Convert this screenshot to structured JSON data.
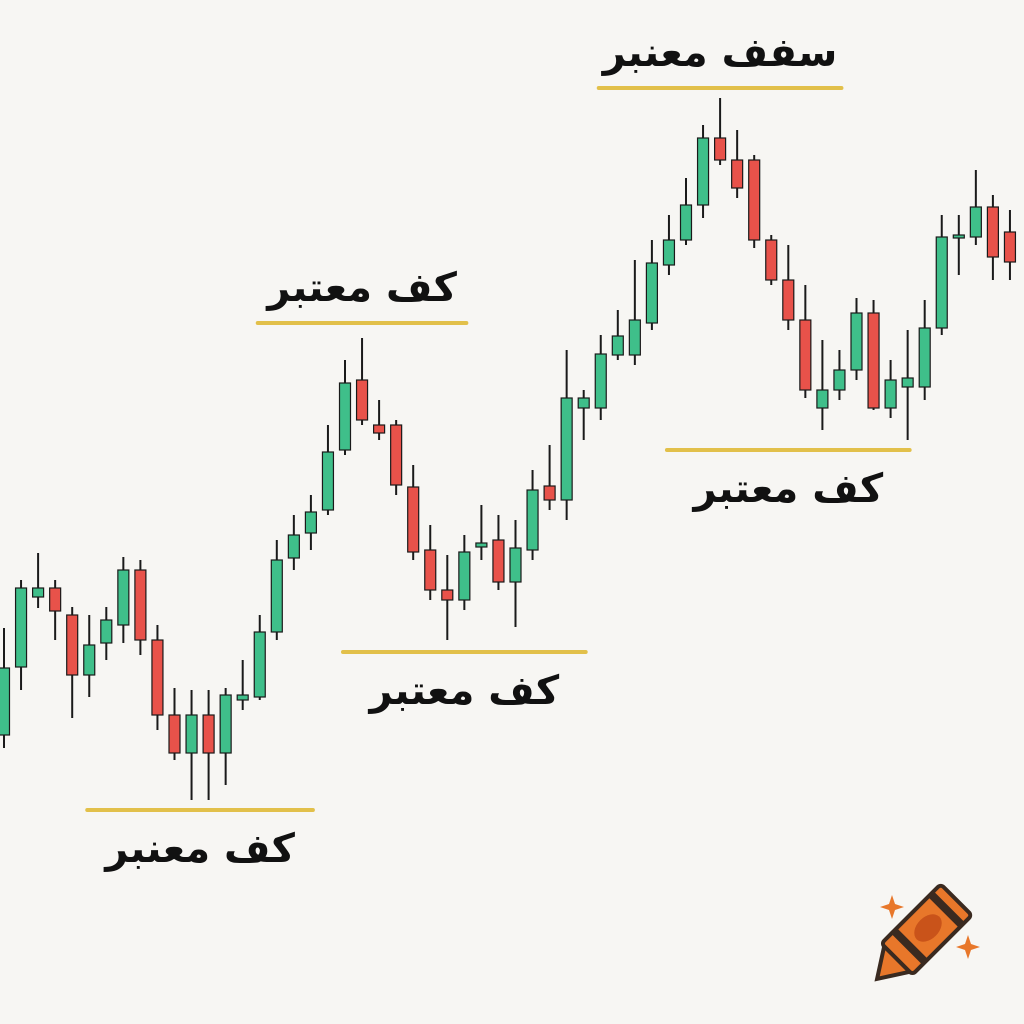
{
  "chart_data": {
    "type": "candlestick",
    "title": "",
    "xlabel": "",
    "ylabel": "",
    "grid": false,
    "colors": {
      "up": "#3fbf8a",
      "down": "#e8524a",
      "outline": "#1a1a1a",
      "level": "#e2c04a",
      "background": "#f7f6f3"
    },
    "ohlc": [
      [
        26.5,
        37.2,
        25.2,
        33.2
      ],
      [
        33.3,
        42.0,
        31.0,
        41.2
      ],
      [
        40.3,
        44.7,
        39.2,
        41.2
      ],
      [
        41.2,
        42.0,
        36.0,
        38.9
      ],
      [
        38.5,
        39.3,
        28.2,
        32.5
      ],
      [
        32.5,
        38.5,
        30.3,
        35.5
      ],
      [
        35.7,
        39.3,
        34.0,
        38.0
      ],
      [
        37.5,
        44.3,
        35.7,
        43.0
      ],
      [
        43.0,
        44.0,
        34.5,
        36.0
      ],
      [
        36.0,
        37.5,
        27.0,
        28.5
      ],
      [
        28.5,
        31.2,
        24.0,
        24.7
      ],
      [
        24.7,
        31.0,
        20.0,
        28.5
      ],
      [
        28.5,
        31.0,
        20.0,
        24.7
      ],
      [
        24.7,
        31.2,
        21.5,
        30.5
      ],
      [
        30.0,
        34.0,
        29.0,
        30.5
      ],
      [
        30.3,
        38.5,
        30.0,
        36.8
      ],
      [
        36.8,
        46.0,
        36.0,
        44.0
      ],
      [
        44.2,
        48.5,
        43.0,
        46.5
      ],
      [
        46.7,
        50.5,
        45.0,
        48.8
      ],
      [
        49.0,
        57.5,
        48.5,
        54.8
      ],
      [
        55.0,
        64.0,
        54.5,
        61.7
      ],
      [
        62.0,
        66.2,
        57.5,
        58.0
      ],
      [
        57.5,
        60.0,
        56.0,
        56.7
      ],
      [
        57.5,
        58.0,
        50.5,
        51.5
      ],
      [
        51.3,
        53.5,
        44.0,
        44.8
      ],
      [
        45.0,
        47.5,
        40.0,
        41.0
      ],
      [
        41.0,
        44.5,
        36.0,
        40.0
      ],
      [
        40.0,
        46.5,
        39.0,
        44.8
      ],
      [
        45.3,
        49.5,
        44.0,
        45.7
      ],
      [
        46.0,
        48.5,
        41.0,
        41.8
      ],
      [
        41.8,
        48.0,
        37.3,
        45.2
      ],
      [
        45.0,
        53.0,
        44.0,
        51.0
      ],
      [
        51.4,
        55.5,
        49.0,
        50.0
      ],
      [
        50.0,
        65.0,
        48.0,
        60.2
      ],
      [
        59.2,
        61.0,
        56.0,
        60.2
      ],
      [
        59.2,
        66.5,
        58.0,
        64.6
      ],
      [
        64.5,
        69.0,
        64.0,
        66.4
      ],
      [
        64.5,
        74.0,
        63.5,
        68.0
      ],
      [
        67.7,
        76.0,
        67.0,
        73.7
      ],
      [
        73.5,
        78.5,
        72.5,
        76.0
      ],
      [
        76.0,
        82.2,
        75.5,
        79.5
      ],
      [
        79.5,
        87.5,
        78.2,
        86.2
      ],
      [
        86.2,
        90.2,
        83.5,
        84.0
      ],
      [
        84.0,
        87.0,
        80.2,
        81.2
      ],
      [
        84.0,
        84.5,
        75.2,
        76.0
      ],
      [
        76.0,
        76.5,
        71.5,
        72.0
      ],
      [
        72.0,
        75.5,
        67.0,
        68.0
      ],
      [
        68.0,
        71.5,
        60.2,
        61.0
      ],
      [
        59.2,
        66.0,
        57.0,
        61.0
      ],
      [
        61.0,
        65.0,
        60.0,
        63.0
      ],
      [
        63.0,
        70.2,
        62.0,
        68.7
      ],
      [
        68.7,
        70.0,
        59.0,
        59.2
      ],
      [
        59.2,
        64.0,
        58.2,
        62.0
      ],
      [
        61.3,
        67.0,
        56.0,
        62.2
      ],
      [
        61.3,
        70.0,
        60.0,
        67.2
      ],
      [
        67.2,
        78.5,
        66.5,
        76.3
      ],
      [
        76.2,
        78.5,
        72.5,
        76.5
      ],
      [
        76.3,
        83.0,
        75.5,
        79.3
      ],
      [
        79.3,
        80.5,
        72.0,
        74.3
      ],
      [
        76.8,
        79.0,
        72.0,
        73.8
      ]
    ],
    "ohlc_order": [
      "open",
      "high",
      "low",
      "close"
    ],
    "levels": [
      {
        "label": "كف معنبر",
        "price": 19.0,
        "from_candle": 5,
        "to_candle": 18,
        "label_position": "below"
      },
      {
        "label": "كف معتبر",
        "price": 67.7,
        "from_candle": 15,
        "to_candle": 27,
        "label_position": "above"
      },
      {
        "label": "كف معتبر",
        "price": 34.8,
        "from_candle": 20,
        "to_candle": 34,
        "label_position": "below"
      },
      {
        "label": "سفف معنبر",
        "price": 91.2,
        "from_candle": 35,
        "to_candle": 49,
        "label_position": "above"
      },
      {
        "label": "كف معتبر",
        "price": 55.0,
        "from_candle": 39,
        "to_candle": 53,
        "label_position": "below"
      }
    ]
  },
  "logo": {
    "name": "crayon-icon",
    "colors": {
      "body": "#e8772a",
      "stripe": "#3a2a20",
      "sparkle": "#e8772a"
    }
  }
}
